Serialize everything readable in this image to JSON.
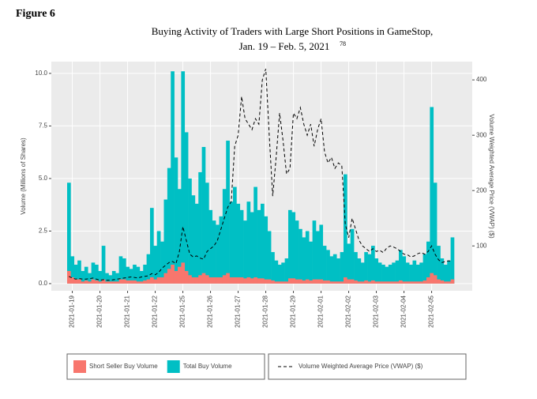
{
  "figure_label": "Figure 6",
  "chart_data": {
    "type": "bar",
    "title": "Buying Activity of Traders with Large Short Positions in GameStop,",
    "subtitle": "Jan. 19 – Feb. 5, 2021",
    "title_note": "78",
    "y_label": "Volume (Millions of Shares)",
    "y2_label": "Volume Weighted Average Price (VWAP) ($)",
    "categories": [
      null,
      "2021-01-19",
      null,
      null,
      null,
      null,
      null,
      null,
      null,
      "2021-01-20",
      null,
      null,
      null,
      null,
      null,
      null,
      null,
      "2021-01-21",
      null,
      null,
      null,
      null,
      null,
      null,
      null,
      "2021-01-22",
      null,
      null,
      null,
      null,
      null,
      null,
      null,
      "2021-01-25",
      null,
      null,
      null,
      null,
      null,
      null,
      null,
      "2021-01-26",
      null,
      null,
      null,
      null,
      null,
      null,
      null,
      "2021-01-27",
      null,
      null,
      null,
      null,
      null,
      null,
      null,
      "2021-01-28",
      null,
      null,
      null,
      null,
      null,
      null,
      null,
      "2021-01-29",
      null,
      null,
      null,
      null,
      null,
      null,
      null,
      "2021-02-01",
      null,
      null,
      null,
      null,
      null,
      null,
      null,
      "2021-02-02",
      null,
      null,
      null,
      null,
      null,
      null,
      null,
      "2021-02-03",
      null,
      null,
      null,
      null,
      null,
      null,
      null,
      "2021-02-04",
      null,
      null,
      null,
      null,
      null,
      null,
      null,
      "2021-02-05",
      null,
      null,
      null,
      null,
      null,
      null
    ],
    "series": [
      {
        "name": "Short Seller Buy Volume",
        "color": "#f8766d",
        "values": [
          0.6,
          0.3,
          0.2,
          0.2,
          0.1,
          0.15,
          0.1,
          0.2,
          0.15,
          0.1,
          0.2,
          0.1,
          0.1,
          0.1,
          0.1,
          0.2,
          0.2,
          0.15,
          0.15,
          0.15,
          0.1,
          0.1,
          0.15,
          0.2,
          0.3,
          0.2,
          0.3,
          0.3,
          0.5,
          0.7,
          0.9,
          0.6,
          0.8,
          1.0,
          0.6,
          0.4,
          0.3,
          0.3,
          0.4,
          0.5,
          0.4,
          0.3,
          0.3,
          0.3,
          0.3,
          0.4,
          0.5,
          0.3,
          0.3,
          0.3,
          0.3,
          0.25,
          0.3,
          0.25,
          0.3,
          0.25,
          0.25,
          0.2,
          0.2,
          0.15,
          0.1,
          0.1,
          0.1,
          0.1,
          0.25,
          0.25,
          0.2,
          0.2,
          0.15,
          0.2,
          0.15,
          0.2,
          0.2,
          0.2,
          0.15,
          0.15,
          0.1,
          0.1,
          0.1,
          0.1,
          0.3,
          0.2,
          0.2,
          0.15,
          0.1,
          0.1,
          0.15,
          0.1,
          0.15,
          0.1,
          0.1,
          0.1,
          0.1,
          0.1,
          0.1,
          0.1,
          0.15,
          0.1,
          0.1,
          0.1,
          0.1,
          0.1,
          0.1,
          0.15,
          0.3,
          0.5,
          0.4,
          0.2,
          0.15,
          0.1,
          0.1,
          0.2
        ]
      },
      {
        "name": "Total Buy Volume",
        "color": "#00bfc4",
        "values": [
          4.8,
          1.3,
          0.9,
          1.1,
          0.6,
          0.8,
          0.5,
          1.0,
          0.9,
          0.6,
          1.8,
          0.5,
          0.4,
          0.6,
          0.5,
          1.3,
          1.2,
          0.8,
          0.7,
          0.9,
          0.8,
          0.6,
          0.9,
          1.4,
          3.6,
          1.8,
          2.5,
          2.0,
          4.0,
          5.5,
          10.1,
          6.0,
          4.5,
          10.1,
          7.2,
          5.0,
          4.2,
          3.8,
          5.3,
          6.5,
          4.8,
          3.5,
          3.0,
          2.8,
          3.2,
          4.5,
          6.8,
          3.9,
          4.6,
          3.8,
          3.5,
          3.0,
          3.9,
          3.4,
          4.6,
          3.5,
          3.8,
          3.2,
          2.5,
          1.5,
          1.1,
          0.9,
          1.0,
          1.2,
          3.5,
          3.4,
          3.0,
          2.6,
          2.2,
          2.5,
          2.0,
          3.0,
          2.5,
          2.8,
          1.8,
          1.6,
          1.3,
          1.4,
          1.2,
          1.5,
          5.2,
          1.9,
          2.6,
          1.5,
          1.2,
          1.0,
          1.5,
          1.4,
          1.8,
          1.2,
          1.0,
          0.9,
          0.8,
          0.9,
          1.0,
          1.1,
          1.6,
          1.3,
          1.0,
          0.9,
          1.1,
          0.9,
          1.0,
          1.4,
          2.0,
          8.4,
          4.8,
          1.8,
          1.2,
          0.9,
          1.1,
          2.2
        ]
      },
      {
        "name": "Volume Weighted Average Price (VWAP) ($)",
        "color": "#000000",
        "axis": "y2",
        "dash": true,
        "values": [
          45,
          42,
          40,
          41,
          40,
          40,
          41,
          42,
          40,
          38,
          39,
          38,
          38,
          39,
          40,
          41,
          42,
          43,
          44,
          43,
          42,
          44,
          45,
          46,
          50,
          48,
          52,
          60,
          65,
          70,
          72,
          68,
          90,
          135,
          110,
          85,
          80,
          82,
          78,
          76,
          90,
          95,
          100,
          110,
          130,
          150,
          170,
          180,
          280,
          300,
          370,
          330,
          320,
          310,
          330,
          320,
          400,
          420,
          300,
          190,
          260,
          340,
          290,
          230,
          240,
          340,
          330,
          350,
          320,
          300,
          320,
          280,
          310,
          330,
          270,
          250,
          260,
          240,
          250,
          245,
          140,
          115,
          150,
          130,
          110,
          100,
          95,
          90,
          95,
          90,
          92,
          88,
          96,
          100,
          98,
          95,
          90,
          85,
          84,
          80,
          82,
          86,
          88,
          85,
          90,
          100,
          85,
          75,
          70,
          72,
          73,
          72
        ]
      }
    ],
    "ylim": [
      -0.34,
      10.56
    ],
    "yticks": [
      {
        "value": 0,
        "label": "0.0"
      },
      2.5,
      {
        "value": 5,
        "label": "5.0"
      },
      7.5,
      {
        "value": 10,
        "label": "10.0"
      }
    ],
    "y2lim": [
      19,
      433
    ],
    "y2ticks": [
      100,
      200,
      300,
      400
    ],
    "grid": true,
    "legend": "bottom"
  }
}
